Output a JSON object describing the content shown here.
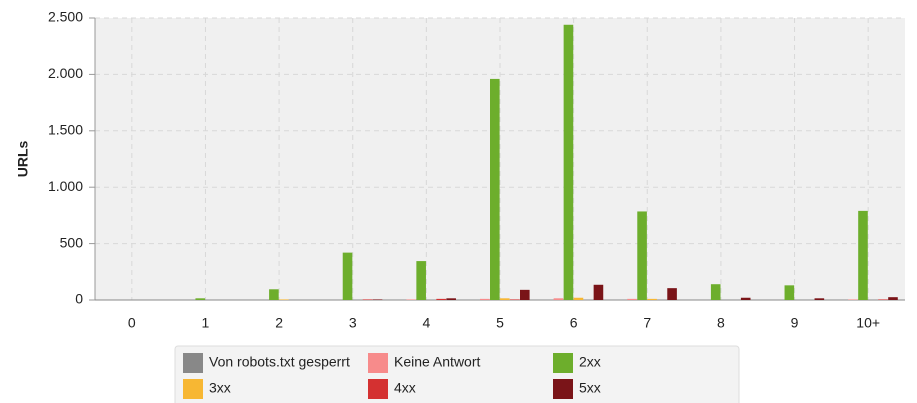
{
  "chart_data": {
    "type": "bar",
    "y_label": "URLs",
    "categories": [
      "0",
      "1",
      "2",
      "3",
      "4",
      "5",
      "6",
      "7",
      "8",
      "9",
      "10+"
    ],
    "series": [
      {
        "name": "Von robots.txt gesperrt",
        "color": "#888888",
        "values": [
          0,
          0,
          0,
          0,
          0,
          0,
          0,
          0,
          0,
          0,
          0
        ]
      },
      {
        "name": "Keine Antwort",
        "color": "#f78b8b",
        "values": [
          0,
          0,
          0,
          0,
          5,
          10,
          15,
          10,
          0,
          0,
          5
        ]
      },
      {
        "name": "2xx",
        "color": "#6dae2c",
        "values": [
          0,
          15,
          95,
          420,
          345,
          1960,
          2440,
          785,
          140,
          130,
          790
        ]
      },
      {
        "name": "3xx",
        "color": "#f7b733",
        "values": [
          0,
          0,
          5,
          0,
          0,
          15,
          20,
          10,
          0,
          0,
          0
        ]
      },
      {
        "name": "4xx",
        "color": "#d43131",
        "values": [
          0,
          0,
          0,
          5,
          10,
          5,
          0,
          0,
          0,
          0,
          5
        ]
      },
      {
        "name": "5xx",
        "color": "#7a1418",
        "values": [
          0,
          0,
          0,
          5,
          15,
          90,
          135,
          105,
          20,
          15,
          25
        ]
      }
    ],
    "ylim": [
      0,
      2500
    ],
    "yticks": [
      0,
      500,
      {
        "value": 1000,
        "label": "1.000"
      },
      {
        "value": 1500,
        "label": "1.500"
      },
      {
        "value": 2000,
        "label": "2.000"
      },
      {
        "value": 2500,
        "label": "2.500"
      }
    ],
    "grid": true
  }
}
